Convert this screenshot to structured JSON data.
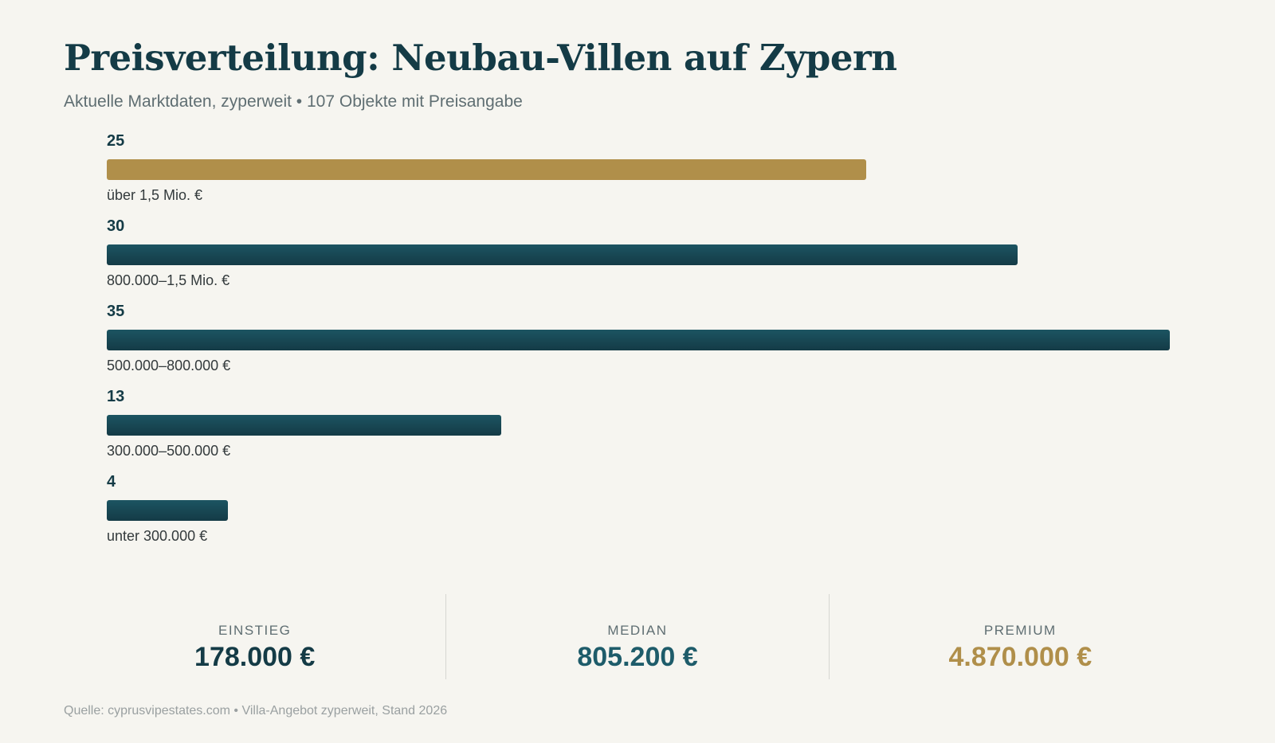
{
  "title": "Preisverteilung: Neubau-Villen auf Zypern",
  "subtitle": "Aktuelle Marktdaten, zyperweit • 107 Objekte mit Preisangabe",
  "chart_data": {
    "type": "bar",
    "orientation": "horizontal",
    "categories": [
      "über 1,5 Mio. €",
      "800.000–1,5 Mio. €",
      "500.000–800.000 €",
      "300.000–500.000 €",
      "unter 300.000 €"
    ],
    "values": [
      25,
      30,
      35,
      13,
      4
    ],
    "value_labels": [
      "25",
      "30",
      "35",
      "13",
      "4"
    ],
    "xlim": [
      0,
      35
    ],
    "grid": false,
    "highlight_index": 0,
    "colors": {
      "default": "#1c5562",
      "highlight": "#b08f4a"
    }
  },
  "stats": [
    {
      "label": "EINSTIEG",
      "value": "178.000 €",
      "color": "#143b46"
    },
    {
      "label": "MEDIAN",
      "value": "805.200 €",
      "color": "#1e5c6a"
    },
    {
      "label": "PREMIUM",
      "value": "4.870.000 €",
      "color": "#b08f4a"
    }
  ],
  "source": "Quelle: cyprusvipestates.com • Villa-Angebot zyperweit, Stand 2026"
}
